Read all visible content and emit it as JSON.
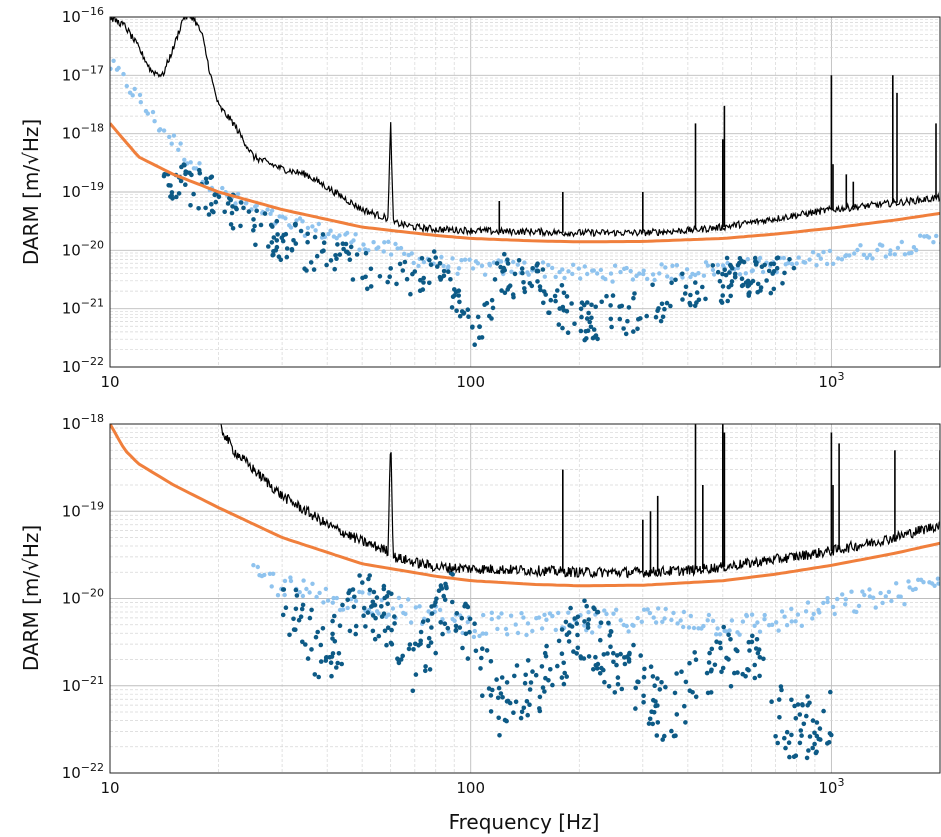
{
  "chart_data": [
    {
      "type": "scatter",
      "panel": "top",
      "title": "",
      "xlabel": "",
      "ylabel": "DARM [m/√Hz]",
      "xscale": "log",
      "yscale": "log",
      "xlim": [
        10,
        2000
      ],
      "ylim": [
        1e-22,
        1e-16
      ],
      "x_ticks": [
        {
          "value": 10,
          "label": "10"
        },
        {
          "value": 100,
          "label": "100"
        },
        {
          "value": 1000,
          "label": "10",
          "exp": "3"
        }
      ],
      "y_ticks": [
        {
          "value": 1e-22,
          "base": "10",
          "exp": "−22"
        },
        {
          "value": 1e-21,
          "base": "10",
          "exp": "−21"
        },
        {
          "value": 1e-20,
          "base": "10",
          "exp": "−20"
        },
        {
          "value": 1e-19,
          "base": "10",
          "exp": "−19"
        },
        {
          "value": 1e-18,
          "base": "10",
          "exp": "−18"
        },
        {
          "value": 1e-17,
          "base": "10",
          "exp": "−17"
        },
        {
          "value": 1e-16,
          "base": "10",
          "exp": "−16"
        }
      ],
      "grid": true,
      "legend": "none",
      "colors": {
        "measured": "#000000",
        "model": "#f07f3c",
        "dark_points": "#0d5a86",
        "light_points": "#8fc3ee"
      },
      "series": [
        {
          "kind": "line",
          "color": "#000000",
          "x": [
            10,
            11,
            12,
            13,
            14,
            15,
            16,
            17,
            18,
            19,
            20,
            22,
            25,
            30,
            35,
            40,
            50,
            59,
            60,
            61,
            70,
            80,
            100,
            120,
            150,
            180,
            200,
            250,
            300,
            400,
            500,
            600,
            800,
            1000,
            1500,
            2000
          ],
          "y": [
            1e-16,
            7e-17,
            3e-17,
            1.2e-17,
            1e-17,
            3e-17,
            1e-16,
            1e-16,
            5e-17,
            1e-17,
            3e-18,
            1.5e-18,
            4e-19,
            2.5e-19,
            2e-19,
            1.2e-19,
            5e-20,
            3.5e-20,
            1.5e-18,
            3e-20,
            2.5e-20,
            2.3e-20,
            2.2e-20,
            2.1e-20,
            2.1e-20,
            2e-20,
            2e-20,
            2e-20,
            2e-20,
            2.2e-20,
            2.5e-20,
            3e-20,
            4e-20,
            5e-20,
            6.5e-20,
            8e-20
          ],
          "peaks": [
            {
              "x": 60,
              "y": 1.5e-18
            },
            {
              "x": 120,
              "y": 7e-20
            },
            {
              "x": 180,
              "y": 1e-19
            },
            {
              "x": 300,
              "y": 1e-19
            },
            {
              "x": 420,
              "y": 1.5e-18
            },
            {
              "x": 500,
              "y": 8e-19
            },
            {
              "x": 505,
              "y": 3e-18
            },
            {
              "x": 1000,
              "y": 1e-17
            },
            {
              "x": 1010,
              "y": 3e-19
            },
            {
              "x": 1100,
              "y": 2e-19
            },
            {
              "x": 1150,
              "y": 1.5e-19
            },
            {
              "x": 1480,
              "y": 1e-17
            },
            {
              "x": 1520,
              "y": 5e-18
            },
            {
              "x": 1950,
              "y": 1.5e-18
            }
          ]
        },
        {
          "kind": "line",
          "color": "#f07f3c",
          "x": [
            10,
            12,
            15,
            20,
            30,
            50,
            80,
            100,
            150,
            200,
            300,
            500,
            700,
            1000,
            1500,
            2000
          ],
          "y": [
            1.5e-18,
            4e-19,
            2e-19,
            1e-19,
            5e-20,
            2.5e-20,
            1.8e-20,
            1.6e-20,
            1.45e-20,
            1.4e-20,
            1.42e-20,
            1.6e-20,
            1.9e-20,
            2.4e-20,
            3.3e-20,
            4.3e-20
          ]
        },
        {
          "kind": "scatter",
          "color": "#0d5a86",
          "x": [
            14,
            20,
            25,
            30,
            40,
            50,
            60,
            70,
            80,
            100,
            105,
            120,
            150,
            200,
            300,
            400,
            500,
            600,
            800
          ],
          "y": [
            2e-19,
            8e-20,
            3e-20,
            1.5e-20,
            8e-21,
            5e-21,
            4e-21,
            3e-21,
            5e-21,
            1e-21,
            3e-22,
            4e-21,
            3e-21,
            6e-22,
            1e-21,
            2e-21,
            3e-21,
            4e-21,
            3e-21
          ]
        },
        {
          "kind": "scatter",
          "color": "#8fc3ee",
          "x": [
            10,
            11,
            12,
            13,
            20,
            30,
            40,
            60,
            80,
            100,
            150,
            200,
            300,
            500,
            800,
            1000,
            1500,
            2000
          ],
          "y": [
            1.5e-17,
            8e-18,
            4e-18,
            2e-18,
            1e-19,
            3e-20,
            2e-20,
            1e-20,
            6e-21,
            5e-21,
            5e-21,
            4e-21,
            4e-21,
            5e-21,
            6e-21,
            8e-21,
            1.1e-20,
            1.5e-20
          ]
        }
      ]
    },
    {
      "type": "scatter",
      "panel": "bottom",
      "title": "",
      "xlabel": "Frequency [Hz]",
      "ylabel": "DARM [m/√Hz]",
      "xscale": "log",
      "yscale": "log",
      "xlim": [
        10,
        2000
      ],
      "ylim": [
        1e-22,
        1e-18
      ],
      "x_ticks": [
        {
          "value": 10,
          "label": "10"
        },
        {
          "value": 100,
          "label": "100"
        },
        {
          "value": 1000,
          "label": "10",
          "exp": "3"
        }
      ],
      "y_ticks": [
        {
          "value": 1e-22,
          "base": "10",
          "exp": "−22"
        },
        {
          "value": 1e-21,
          "base": "10",
          "exp": "−21"
        },
        {
          "value": 1e-20,
          "base": "10",
          "exp": "−20"
        },
        {
          "value": 1e-19,
          "base": "10",
          "exp": "−19"
        },
        {
          "value": 1e-18,
          "base": "10",
          "exp": "−18"
        }
      ],
      "grid": true,
      "legend": "none",
      "colors": {
        "measured": "#000000",
        "model": "#f07f3c",
        "dark_points": "#0d5a86",
        "light_points": "#8fc3ee"
      },
      "series": [
        {
          "kind": "line",
          "color": "#000000",
          "x": [
            20,
            22,
            25,
            30,
            35,
            40,
            50,
            59,
            60,
            61,
            70,
            80,
            100,
            150,
            200,
            300,
            400,
            500,
            700,
            1000,
            1500,
            2000
          ],
          "y": [
            1e-18,
            5e-19,
            3e-19,
            1.5e-19,
            1e-19,
            7e-20,
            4.5e-20,
            3.5e-20,
            8e-19,
            3e-20,
            2.6e-20,
            2.3e-20,
            2.2e-20,
            2.1e-20,
            2e-20,
            2e-20,
            2.1e-20,
            2.3e-20,
            2.8e-20,
            3.5e-20,
            5e-20,
            7e-20
          ],
          "peaks": [
            {
              "x": 60,
              "y": 8e-19
            },
            {
              "x": 180,
              "y": 3e-19
            },
            {
              "x": 300,
              "y": 8e-20
            },
            {
              "x": 315,
              "y": 1e-19
            },
            {
              "x": 330,
              "y": 1.5e-19
            },
            {
              "x": 420,
              "y": 1e-18
            },
            {
              "x": 440,
              "y": 2e-19
            },
            {
              "x": 500,
              "y": 1e-18
            },
            {
              "x": 505,
              "y": 8e-19
            },
            {
              "x": 1000,
              "y": 8e-19
            },
            {
              "x": 1010,
              "y": 2e-19
            },
            {
              "x": 1050,
              "y": 6e-19
            },
            {
              "x": 1500,
              "y": 5e-19
            },
            {
              "x": 2000,
              "y": 5e-19
            }
          ]
        },
        {
          "kind": "line",
          "color": "#f07f3c",
          "x": [
            10,
            11,
            12,
            15,
            20,
            30,
            50,
            80,
            100,
            150,
            200,
            300,
            500,
            700,
            1000,
            1500,
            2000
          ],
          "y": [
            1e-18,
            5e-19,
            3.5e-19,
            2e-19,
            1.1e-19,
            5e-20,
            2.5e-20,
            1.8e-20,
            1.6e-20,
            1.45e-20,
            1.4e-20,
            1.42e-20,
            1.6e-20,
            1.9e-20,
            2.4e-20,
            3.3e-20,
            4.3e-20
          ]
        },
        {
          "kind": "scatter",
          "color": "#0d5a86",
          "x": [
            30,
            40,
            50,
            60,
            70,
            80,
            90,
            120,
            150,
            170,
            200,
            250,
            300,
            350,
            400,
            500,
            600,
            700,
            800,
            1000
          ],
          "y": [
            1e-20,
            2e-21,
            1e-20,
            5e-21,
            1.5e-21,
            5e-21,
            1e-20,
            6e-22,
            1e-21,
            1.5e-21,
            5e-21,
            2e-21,
            1e-21,
            4e-22,
            1e-21,
            2e-21,
            2e-21,
            5e-22,
            3e-22,
            5e-22
          ]
        },
        {
          "kind": "scatter",
          "color": "#8fc3ee",
          "x": [
            25,
            30,
            40,
            50,
            60,
            80,
            100,
            150,
            200,
            300,
            400,
            500,
            600,
            800,
            1000,
            1500,
            2000
          ],
          "y": [
            1.8e-20,
            1.4e-20,
            1e-20,
            1e-20,
            8e-21,
            6e-21,
            5e-21,
            5e-21,
            5e-21,
            6e-21,
            6e-21,
            5e-21,
            5e-21,
            6e-21,
            8e-21,
            1.1e-20,
            1.5e-20
          ]
        }
      ]
    }
  ]
}
